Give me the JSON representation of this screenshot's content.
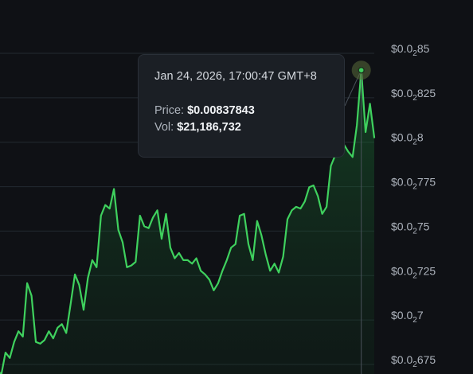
{
  "chart_data": {
    "type": "area",
    "ylim": [
      0.00667,
      0.00855
    ],
    "y_ticks": [
      {
        "prefix": "$0.0",
        "sub": "2",
        "suffix": "85",
        "value": 0.0085
      },
      {
        "prefix": "$0.0",
        "sub": "2",
        "suffix": "825",
        "value": 0.00825
      },
      {
        "prefix": "$0.0",
        "sub": "2",
        "suffix": "8",
        "value": 0.008
      },
      {
        "prefix": "$0.0",
        "sub": "2",
        "suffix": "775",
        "value": 0.00775
      },
      {
        "prefix": "$0.0",
        "sub": "2",
        "suffix": "75",
        "value": 0.0075
      },
      {
        "prefix": "$0.0",
        "sub": "2",
        "suffix": "725",
        "value": 0.00725
      },
      {
        "prefix": "$0.0",
        "sub": "2",
        "suffix": "7",
        "value": 0.007
      },
      {
        "prefix": "$0.0",
        "sub": "2",
        "suffix": "675",
        "value": 0.00675
      }
    ],
    "values": [
      0.00671,
      0.00666,
      0.00679,
      0.00676,
      0.00685,
      0.00691,
      0.00688,
      0.00718,
      0.00711,
      0.00685,
      0.00684,
      0.00686,
      0.00691,
      0.00687,
      0.00693,
      0.00695,
      0.0069,
      0.00706,
      0.00723,
      0.00717,
      0.00703,
      0.00721,
      0.00731,
      0.00727,
      0.00756,
      0.00762,
      0.0076,
      0.00771,
      0.00748,
      0.00741,
      0.00727,
      0.00728,
      0.0073,
      0.00756,
      0.0075,
      0.00749,
      0.00755,
      0.00759,
      0.00743,
      0.00757,
      0.00738,
      0.00732,
      0.00735,
      0.00731,
      0.00731,
      0.00729,
      0.00732,
      0.00725,
      0.00723,
      0.0072,
      0.00714,
      0.00718,
      0.00725,
      0.00731,
      0.00738,
      0.0074,
      0.00756,
      0.00757,
      0.0074,
      0.00731,
      0.00753,
      0.00745,
      0.00734,
      0.00725,
      0.00729,
      0.00724,
      0.00733,
      0.00754,
      0.00759,
      0.00761,
      0.0076,
      0.00764,
      0.00772,
      0.00773,
      0.00767,
      0.00757,
      0.00761,
      0.00784,
      0.0079,
      0.00793,
      0.00796,
      0.00792,
      0.00789,
      0.00807,
      0.00838,
      0.00803,
      0.00819,
      0.008
    ],
    "highlight": {
      "index": 84,
      "value": 0.00837843
    }
  },
  "tooltip": {
    "date": "Jan 24, 2026, 17:00:47 GMT+8",
    "price_label": "Price:",
    "price_value": "$0.00837843",
    "vol_label": "Vol:",
    "vol_value": "$21,186,732"
  },
  "colors": {
    "background": "#0f1115",
    "line": "#3fd15e",
    "grid": "#232a31",
    "tooltip_bg": "#1b1f25",
    "highlight_dot": "#5a6b3a"
  }
}
